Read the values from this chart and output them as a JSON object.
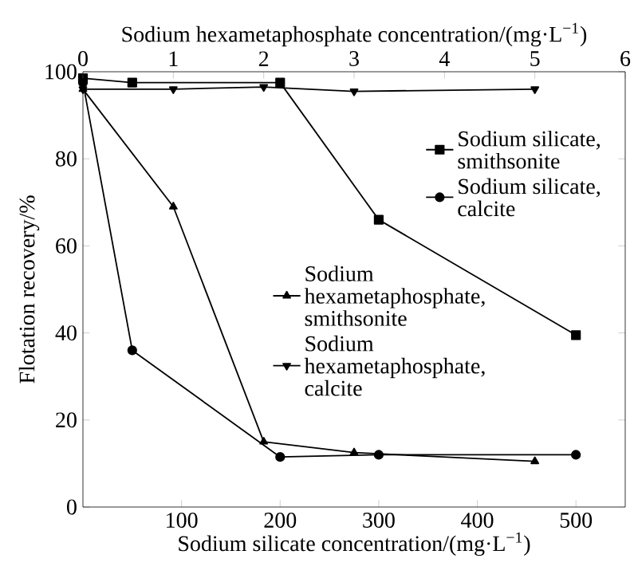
{
  "chart_data": {
    "type": "line",
    "xlabel": "Sodium silicate concentration/(mg·L$^{−1}$)",
    "x2label": "Sodium hexametaphosphate concentration/(mg·L$^{−1}$)",
    "ylabel": "Flotation recovery/%",
    "xlim": [
      0,
      550
    ],
    "xticks": [
      100,
      200,
      300,
      400,
      500
    ],
    "x2lim": [
      0,
      6
    ],
    "x2ticks": [
      0,
      1,
      2,
      3,
      4,
      5,
      6
    ],
    "ylim": [
      0,
      100
    ],
    "yticks": [
      0,
      20,
      40,
      60,
      80,
      100
    ],
    "legend": "right",
    "grid": false,
    "line_style": "solid",
    "series": [
      {
        "name": "Sodium silicate, smithsonite",
        "color": "#000000",
        "marker": "square",
        "x": [
          0,
          50,
          200,
          300,
          500
        ],
        "values": [
          98.5,
          97.5,
          97.5,
          66,
          39.5
        ]
      },
      {
        "name": "Sodium silicate, calcite",
        "color": "#000000",
        "marker": "circle",
        "x": [
          0,
          50,
          200,
          300,
          500
        ],
        "values": [
          97.5,
          36,
          11.5,
          12,
          12
        ]
      },
      {
        "name": "Sodium hexametaphosphate, smithsonite",
        "color": "#000000",
        "marker": "triangle",
        "axis": "x2",
        "x": [
          0,
          1,
          2,
          3,
          5
        ],
        "values": [
          96,
          69,
          15,
          12.5,
          10.5
        ]
      },
      {
        "name": "Sodium hexametaphosphate, calcite",
        "color": "#000000",
        "marker": "triangle_down",
        "axis": "x2",
        "x": [
          0,
          1,
          2,
          3,
          5
        ],
        "values": [
          96,
          96,
          96.5,
          95.5,
          96
        ]
      }
    ]
  }
}
